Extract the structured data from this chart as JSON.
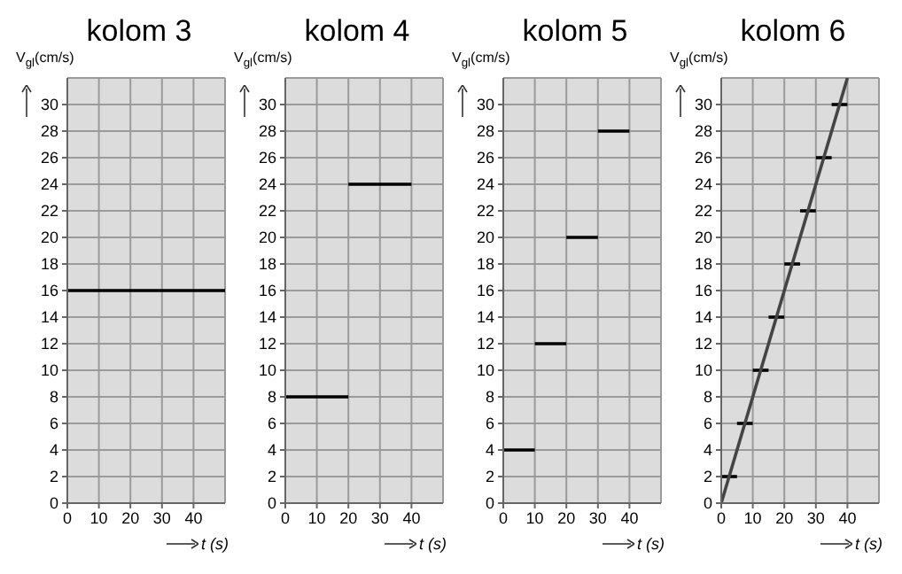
{
  "chart_data": [
    {
      "type": "line",
      "title": "kolom 3",
      "xlabel": "t (s)",
      "ylabel": "V$_{gl}$(cm/s)",
      "xlim": [
        0,
        50
      ],
      "xticks": [
        0,
        10,
        20,
        30,
        40
      ],
      "ylim": [
        0,
        32
      ],
      "yticks": [
        0,
        2,
        4,
        6,
        8,
        10,
        12,
        14,
        16,
        18,
        20,
        22,
        24,
        26,
        28,
        30
      ],
      "grid": true,
      "marker": "none",
      "series": [
        {
          "color": "#000000",
          "x": [
            0,
            50
          ],
          "values": [
            16,
            16
          ]
        }
      ]
    },
    {
      "type": "line",
      "title": "kolom 4",
      "xlabel": "t (s)",
      "ylabel": "V$_{gl}$(cm/s)",
      "xlim": [
        0,
        50
      ],
      "xticks": [
        0,
        10,
        20,
        30,
        40
      ],
      "ylim": [
        0,
        32
      ],
      "yticks": [
        0,
        2,
        4,
        6,
        8,
        10,
        12,
        14,
        16,
        18,
        20,
        22,
        24,
        26,
        28,
        30
      ],
      "grid": true,
      "marker": "none",
      "series": [
        {
          "color": "#000000",
          "x": [
            0,
            20
          ],
          "values": [
            8,
            8
          ]
        },
        {
          "color": "#000000",
          "x": [
            20,
            40
          ],
          "values": [
            24,
            24
          ]
        }
      ]
    },
    {
      "type": "line",
      "title": "kolom 5",
      "xlabel": "t (s)",
      "ylabel": "V$_{gl}$(cm/s)",
      "xlim": [
        0,
        50
      ],
      "xticks": [
        0,
        10,
        20,
        30,
        40
      ],
      "ylim": [
        0,
        32
      ],
      "yticks": [
        0,
        2,
        4,
        6,
        8,
        10,
        12,
        14,
        16,
        18,
        20,
        22,
        24,
        26,
        28,
        30
      ],
      "grid": true,
      "marker": "none",
      "series": [
        {
          "color": "#000000",
          "x": [
            0,
            10
          ],
          "values": [
            4,
            4
          ]
        },
        {
          "color": "#000000",
          "x": [
            10,
            20
          ],
          "values": [
            12,
            12
          ]
        },
        {
          "color": "#000000",
          "x": [
            20,
            30
          ],
          "values": [
            20,
            20
          ]
        },
        {
          "color": "#000000",
          "x": [
            30,
            40
          ],
          "values": [
            28,
            28
          ]
        }
      ]
    },
    {
      "type": "line",
      "title": "kolom 6",
      "xlabel": "t (s)",
      "ylabel": "V$_{gl}$(cm/s)",
      "xlim": [
        0,
        50
      ],
      "xticks": [
        0,
        10,
        20,
        30,
        40
      ],
      "ylim": [
        0,
        32
      ],
      "yticks": [
        0,
        2,
        4,
        6,
        8,
        10,
        12,
        14,
        16,
        18,
        20,
        22,
        24,
        26,
        28,
        30
      ],
      "grid": true,
      "marker": "none",
      "series": [
        {
          "color": "#000000",
          "x": [
            0,
            5
          ],
          "values": [
            2,
            2
          ]
        },
        {
          "color": "#000000",
          "x": [
            5,
            10
          ],
          "values": [
            6,
            6
          ]
        },
        {
          "color": "#000000",
          "x": [
            10,
            15
          ],
          "values": [
            10,
            10
          ]
        },
        {
          "color": "#000000",
          "x": [
            15,
            20
          ],
          "values": [
            14,
            14
          ]
        },
        {
          "color": "#000000",
          "x": [
            20,
            25
          ],
          "values": [
            18,
            18
          ]
        },
        {
          "color": "#000000",
          "x": [
            25,
            30
          ],
          "values": [
            22,
            22
          ]
        },
        {
          "color": "#000000",
          "x": [
            30,
            35
          ],
          "values": [
            26,
            26
          ]
        },
        {
          "color": "#000000",
          "x": [
            35,
            40
          ],
          "values": [
            30,
            30
          ]
        },
        {
          "color": "#444444",
          "x": [
            0,
            40
          ],
          "values": [
            0,
            32
          ]
        }
      ]
    }
  ]
}
